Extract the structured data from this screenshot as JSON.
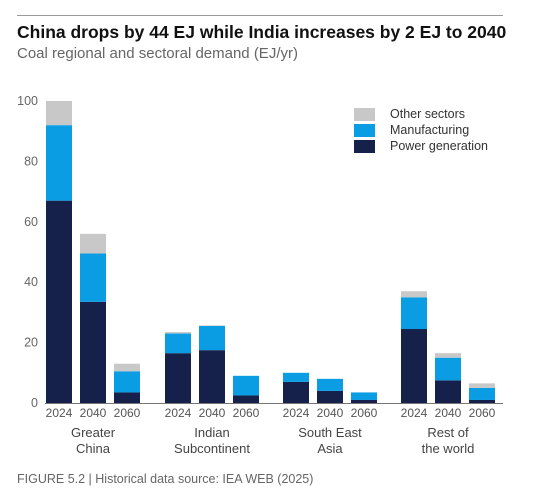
{
  "header": {
    "title": "China drops by 44 EJ while India increases by 2 EJ to 2040",
    "subtitle": "Coal regional and sectoral demand (EJ/yr)"
  },
  "footer": {
    "text": "FIGURE 5.2 | Historical data source: IEA WEB (2025)"
  },
  "colors": {
    "power": "#15214b",
    "manufacturing": "#0b9de3",
    "other": "#c8c8c8"
  },
  "chart_data": {
    "type": "bar",
    "stacked": true,
    "title": "China drops by 44 EJ while India increases by 2 EJ to 2040",
    "subtitle": "Coal regional and sectoral demand (EJ/yr)",
    "ylim": [
      0,
      100
    ],
    "yticks": [
      0,
      20,
      40,
      60,
      80,
      100
    ],
    "grid": false,
    "legend_position": "top-right",
    "groups": [
      {
        "label_lines": [
          "Greater",
          "China"
        ],
        "years": [
          "2024",
          "2040",
          "2060"
        ]
      },
      {
        "label_lines": [
          "Indian",
          "Subcontinent"
        ],
        "years": [
          "2024",
          "2040",
          "2060"
        ]
      },
      {
        "label_lines": [
          "South East",
          "Asia"
        ],
        "years": [
          "2024",
          "2040",
          "2060"
        ]
      },
      {
        "label_lines": [
          "Rest of",
          "the world"
        ],
        "years": [
          "2024",
          "2040",
          "2060"
        ]
      }
    ],
    "series": [
      {
        "name": "Power generation",
        "color": "#15214b",
        "values": [
          [
            67,
            33.5,
            3.5
          ],
          [
            16.5,
            17.5,
            2.5
          ],
          [
            7,
            4,
            1
          ],
          [
            24.5,
            7.5,
            1
          ]
        ]
      },
      {
        "name": "Manufacturing",
        "color": "#0b9de3",
        "values": [
          [
            25,
            16,
            7
          ],
          [
            6.5,
            8,
            6.5
          ],
          [
            3,
            4,
            2.5
          ],
          [
            10.5,
            7.5,
            4
          ]
        ]
      },
      {
        "name": "Other sectors",
        "color": "#c8c8c8",
        "values": [
          [
            8,
            6.5,
            2.5
          ],
          [
            0.5,
            0.2,
            0
          ],
          [
            0,
            0,
            0
          ],
          [
            2,
            1.5,
            1.5
          ]
        ]
      }
    ],
    "legend": [
      {
        "name": "Other sectors",
        "color": "#c8c8c8"
      },
      {
        "name": "Manufacturing",
        "color": "#0b9de3"
      },
      {
        "name": "Power generation",
        "color": "#15214b"
      }
    ]
  }
}
